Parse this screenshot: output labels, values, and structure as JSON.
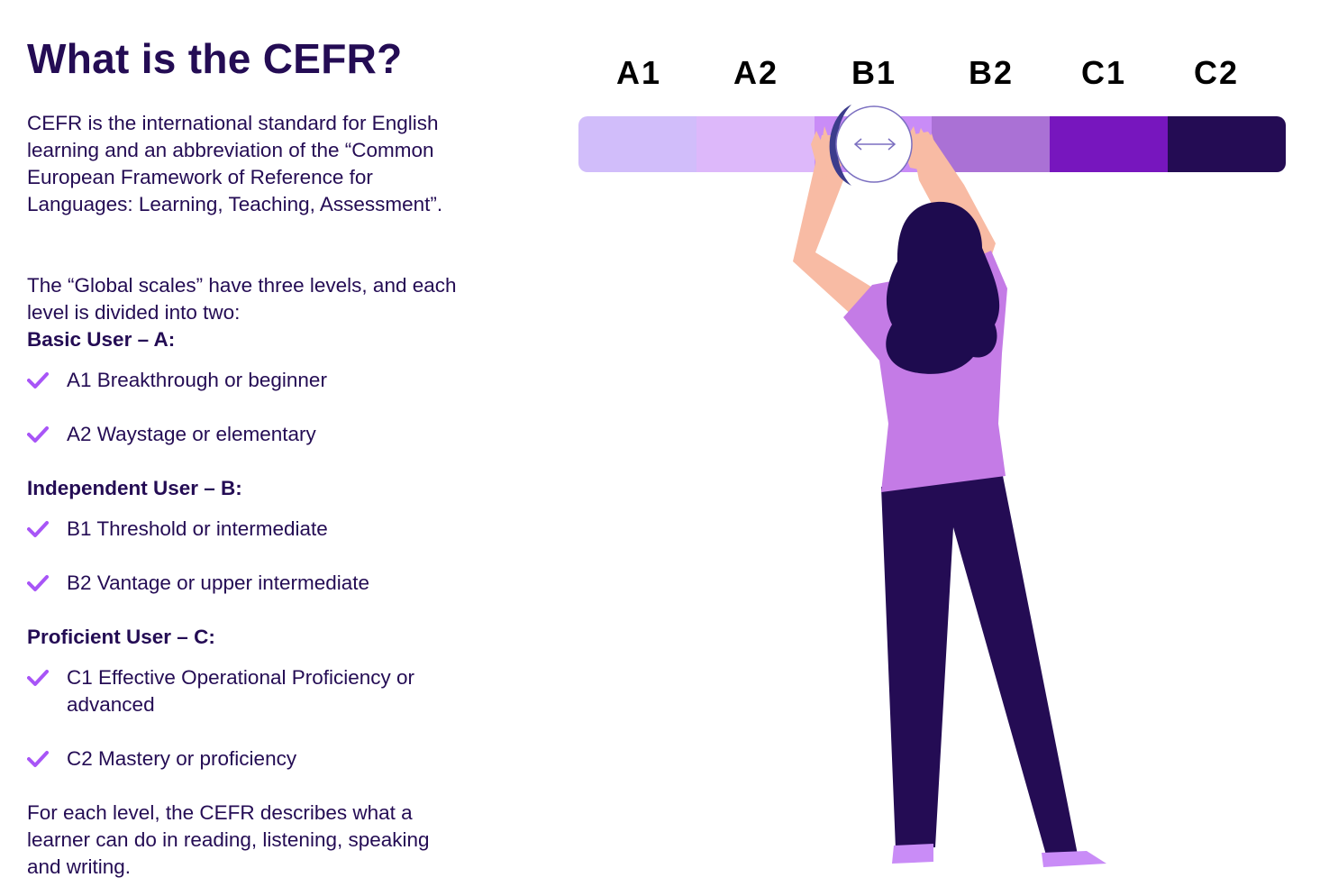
{
  "title": "What is the CEFR?",
  "intro": "CEFR is the international standard for English learning and an abbreviation of the “Common European Framework of Reference for Languages: Learning, Teaching, Assessment”.",
  "scales_intro": "The “Global scales” have three levels, and each level is divided into two:",
  "groups": [
    {
      "heading": "Basic User – A:",
      "items": [
        "A1 Breakthrough or beginner",
        "A2 Waystage or elementary"
      ]
    },
    {
      "heading": "Independent User – B:",
      "items": [
        "B1 Threshold or intermediate",
        "B2 Vantage or upper intermediate"
      ]
    },
    {
      "heading": "Proficient User – C:",
      "items": [
        "C1 Effective Operational Proficiency or advanced",
        "C2 Mastery or proficiency"
      ]
    }
  ],
  "outro": "For each level, the CEFR describes what a learner can do in reading, listening, speaking and writing.",
  "scale": {
    "labels": [
      "A1",
      "A2",
      "B1",
      "B2",
      "C1",
      "C2"
    ],
    "colors": [
      "#d1bdfa",
      "#ddb8fa",
      "#c98cf7",
      "#aa71d5",
      "#7716be",
      "#240c54"
    ]
  },
  "icons": {
    "list_bullet": "check-icon",
    "slider_handle": "double-arrow-icon"
  },
  "colors": {
    "text": "#240c54",
    "check": "#a855f7",
    "shirt": "#c47be6",
    "skin": "#f8bba4",
    "hair": "#1e0b4f"
  }
}
